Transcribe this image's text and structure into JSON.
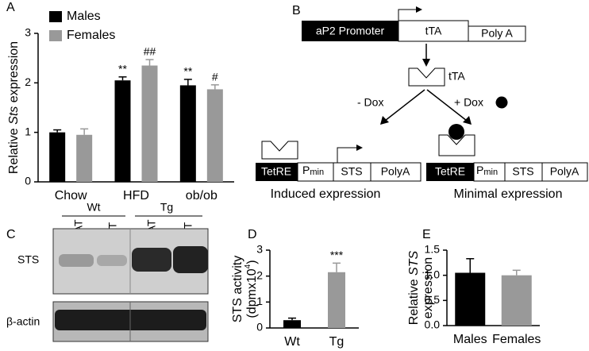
{
  "chart_data": [
    {
      "type": "bar",
      "panel": "A",
      "ylabel": [
        [
          {
            "text": "Relative "
          },
          {
            "text": "Sts",
            "italic": true
          },
          {
            "text": " expression"
          }
        ]
      ],
      "categories": [
        "Chow",
        "HFD",
        "ob/ob"
      ],
      "series": [
        {
          "name": "Males",
          "color": "#000000",
          "values": [
            1.0,
            2.05,
            1.95
          ],
          "errors": [
            0.05,
            0.07,
            0.12
          ],
          "labels": [
            null,
            "**",
            "**"
          ]
        },
        {
          "name": "Females",
          "color": "#999999",
          "values": [
            0.95,
            2.35,
            1.87
          ],
          "errors": [
            0.12,
            0.12,
            0.09
          ],
          "labels": [
            null,
            "##",
            "#"
          ]
        }
      ],
      "ylim": [
        0,
        3
      ],
      "yticks": [
        0,
        1,
        2,
        3
      ],
      "legend": "upper left"
    },
    {
      "type": "bar",
      "panel": "D",
      "ylabel": [
        [
          {
            "text": "STS activity"
          }
        ],
        [
          {
            "text": "(dpmx10"
          },
          {
            "text": "4",
            "sup": true
          },
          {
            "text": ")"
          }
        ]
      ],
      "categories": [
        "Wt",
        "Tg"
      ],
      "values": [
        0.3,
        2.15
      ],
      "errors": [
        0.08,
        0.35
      ],
      "colors": [
        "#000000",
        "#999999"
      ],
      "labels": [
        null,
        "***"
      ],
      "ylim": [
        0,
        3
      ],
      "yticks": [
        0,
        1,
        2,
        3
      ]
    },
    {
      "type": "bar",
      "panel": "E",
      "ylabel": [
        [
          {
            "text": "Relative "
          },
          {
            "text": "STS",
            "italic": true
          }
        ],
        [
          {
            "text": "expression"
          }
        ]
      ],
      "categories": [
        "Males",
        "Females"
      ],
      "values": [
        1.05,
        1.0
      ],
      "errors": [
        0.28,
        0.1
      ],
      "colors": [
        "#000000",
        "#999999"
      ],
      "ylim": [
        0,
        1.5
      ],
      "yticks": [
        {
          "value": 0,
          "label": "0.0"
        },
        0.5,
        {
          "value": 1,
          "label": "1.0"
        },
        1.5
      ]
    }
  ],
  "diagram": {
    "panel": "B",
    "top_construct": {
      "promoter": "aP2 Promoter",
      "gene": "tTA",
      "polya": "Poly A"
    },
    "protein": "tTA",
    "minus_dox": "- Dox",
    "plus_dox": "+ Dox",
    "left_construct": {
      "tetre": "TetRE",
      "promoter": "P",
      "promoter_sub": "min",
      "gene": "STS",
      "polya": "PolyA",
      "caption": "Induced expression"
    },
    "right_construct": {
      "tetre": "TetRE",
      "promoter": "P",
      "promoter_sub": "min",
      "gene": "STS",
      "polya": "PolyA",
      "caption": "Minimal expression"
    }
  },
  "blot": {
    "panel": "C",
    "groups": [
      {
        "label": "Wt",
        "lanes": [
          "WAT",
          "BAT"
        ]
      },
      {
        "label": "Tg",
        "lanes": [
          "WAT",
          "BAT"
        ]
      }
    ],
    "rows": [
      "STS",
      "β-actin"
    ]
  }
}
